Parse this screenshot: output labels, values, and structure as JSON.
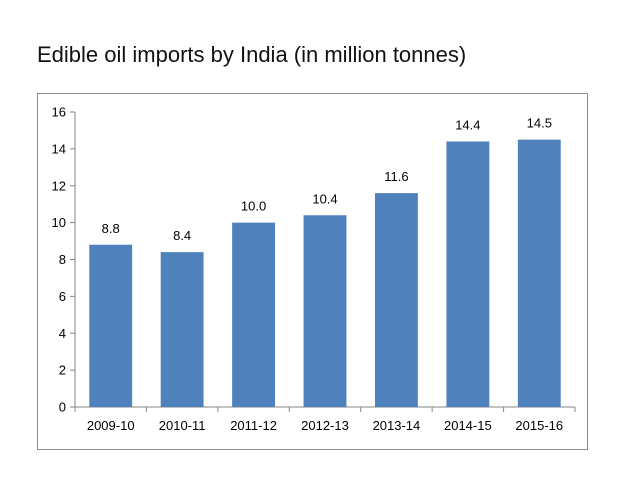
{
  "title": "Edible oil imports by India (in million tonnes)",
  "chart_data": {
    "type": "bar",
    "title": "Edible oil imports by India (in million tonnes)",
    "xlabel": "",
    "ylabel": "",
    "categories": [
      "2009-10",
      "2010-11",
      "2011-12",
      "2012-13",
      "2013-14",
      "2014-15",
      "2015-16"
    ],
    "values": [
      8.8,
      8.4,
      10.0,
      10.4,
      11.6,
      14.4,
      14.5
    ],
    "data_labels": [
      "8.8",
      "8.4",
      "10.0",
      "10.4",
      "11.6",
      "14.4",
      "14.5"
    ],
    "ylim": [
      0,
      16
    ],
    "yticks": [
      0,
      2,
      4,
      6,
      8,
      10,
      12,
      14,
      16
    ],
    "grid": false,
    "legend": "none",
    "colors": {
      "bar": "#4f81bd",
      "axis": "#868686",
      "frame": "#8c8c8c"
    }
  }
}
